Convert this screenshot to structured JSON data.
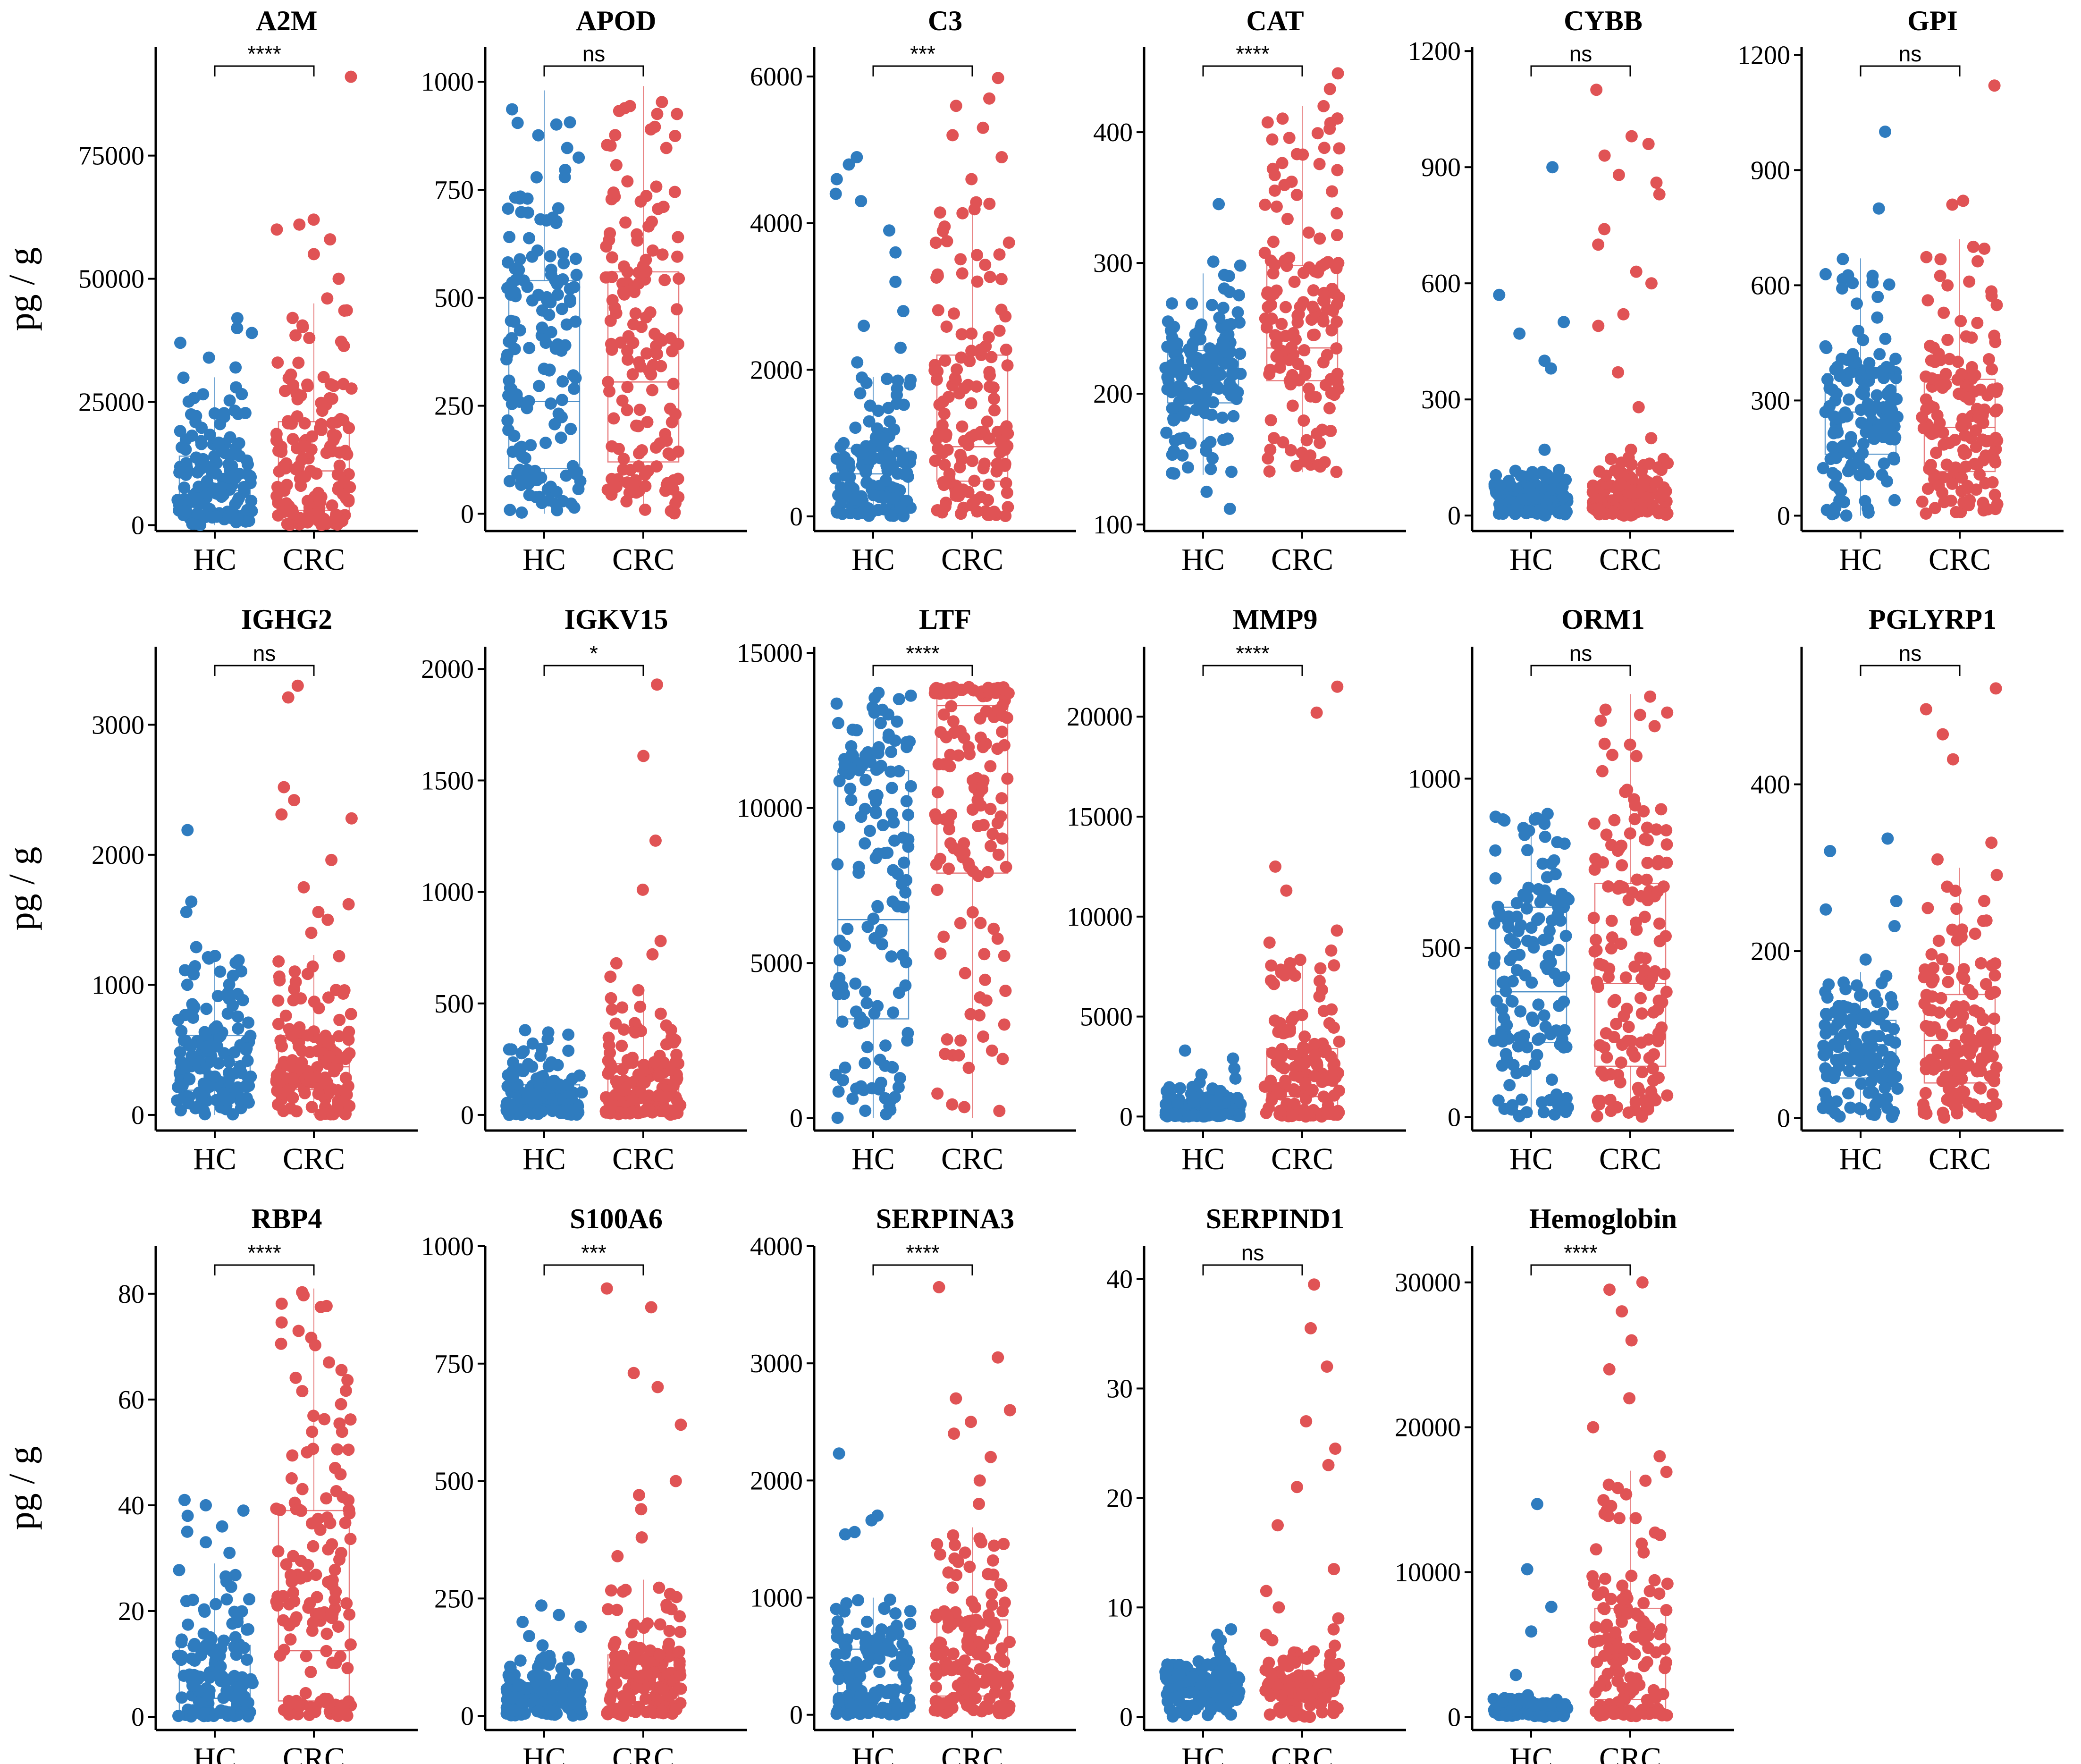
{
  "chart_data": {
    "type": "box-jitter",
    "ylabel": "pg / g",
    "groups": [
      "HC",
      "CRC"
    ],
    "colors": {
      "HC": "#2f7cbf",
      "CRC": "#e05355"
    },
    "panels": [
      {
        "title": "A2M",
        "ylim": [
          -1200,
          97000
        ],
        "ticks": [
          0,
          25000,
          50000,
          75000
        ],
        "tick_labels": [
          "0",
          "25000",
          "50000",
          "75000"
        ],
        "sig": "****",
        "HC": {
          "q1": 3000,
          "median": 7000,
          "q3": 14000,
          "whisker_low": 0,
          "whisker_high": 30000,
          "max": 42000,
          "outliers": [
            32000,
            34000,
            37000,
            39000,
            40000,
            42000
          ]
        },
        "CRC": {
          "q1": 3000,
          "median": 11000,
          "q3": 21000,
          "whisker_low": 0,
          "whisker_high": 45000,
          "max": 91000,
          "outliers": [
            46000,
            50000,
            55000,
            58000,
            60000,
            61000,
            62000,
            91000
          ]
        }
      },
      {
        "title": "APOD",
        "ylim": [
          -40,
          1080
        ],
        "ticks": [
          0,
          250,
          500,
          750,
          1000
        ],
        "tick_labels": [
          "0",
          "250",
          "500",
          "750",
          "1000"
        ],
        "sig": "ns",
        "HC": {
          "q1": 105,
          "median": 260,
          "q3": 540,
          "whisker_low": 0,
          "whisker_high": 980,
          "max": 980,
          "outliers": []
        },
        "CRC": {
          "q1": 120,
          "median": 305,
          "q3": 560,
          "whisker_low": 0,
          "whisker_high": 990,
          "max": 990,
          "outliers": []
        }
      },
      {
        "title": "C3",
        "ylim": [
          -200,
          6400
        ],
        "ticks": [
          0,
          2000,
          4000,
          6000
        ],
        "tick_labels": [
          "0",
          "2000",
          "4000",
          "6000"
        ],
        "sig": "***",
        "HC": {
          "q1": 250,
          "median": 580,
          "q3": 930,
          "whisker_low": 0,
          "whisker_high": 1900,
          "max": 4900,
          "outliers": [
            2100,
            2300,
            2600,
            2800,
            3200,
            3600,
            3900,
            4300,
            4400,
            4600,
            4800,
            4900
          ]
        },
        "CRC": {
          "q1": 480,
          "median": 950,
          "q3": 2200,
          "whisker_low": 0,
          "whisker_high": 4300,
          "max": 5980,
          "outliers": [
            4600,
            4900,
            5200,
            5300,
            5600,
            5700,
            5980
          ]
        }
      },
      {
        "title": "CAT",
        "ylim": [
          95,
          465
        ],
        "ticks": [
          100,
          200,
          300,
          400
        ],
        "tick_labels": [
          "100",
          "200",
          "300",
          "400"
        ],
        "sig": "****",
        "HC": {
          "q1": 193,
          "median": 215,
          "q3": 233,
          "whisker_low": 138,
          "whisker_high": 292,
          "max": 345,
          "outliers": [
            112,
            125,
            298,
            301,
            345
          ]
        },
        "CRC": {
          "q1": 210,
          "median": 235,
          "q3": 298,
          "whisker_low": 140,
          "whisker_high": 420,
          "max": 445,
          "outliers": [
            433,
            445
          ]
        }
      },
      {
        "title": "CYBB",
        "ylim": [
          -40,
          1210
        ],
        "ticks": [
          0,
          300,
          600,
          900,
          1200
        ],
        "tick_labels": [
          "0",
          "300",
          "600",
          "900",
          "1200"
        ],
        "sig": "ns",
        "HC": {
          "q1": 15,
          "median": 40,
          "q3": 70,
          "whisker_low": 0,
          "whisker_high": 120,
          "max": 900,
          "outliers": [
            170,
            380,
            400,
            470,
            500,
            570,
            900
          ]
        },
        "CRC": {
          "q1": 20,
          "median": 45,
          "q3": 80,
          "whisker_low": 0,
          "whisker_high": 150,
          "max": 1100,
          "outliers": [
            170,
            200,
            280,
            370,
            490,
            520,
            600,
            630,
            700,
            740,
            830,
            860,
            880,
            930,
            960,
            980,
            1100
          ]
        }
      },
      {
        "title": "GPI",
        "ylim": [
          -40,
          1220
        ],
        "ticks": [
          0,
          300,
          600,
          900,
          1200
        ],
        "tick_labels": [
          "0",
          "300",
          "600",
          "900",
          "1200"
        ],
        "sig": "ns",
        "HC": {
          "q1": 160,
          "median": 270,
          "q3": 370,
          "whisker_low": 0,
          "whisker_high": 670,
          "max": 1000,
          "outliers": [
            800,
            1000
          ]
        },
        "CRC": {
          "q1": 115,
          "median": 230,
          "q3": 355,
          "whisker_low": 0,
          "whisker_high": 720,
          "max": 1120,
          "outliers": [
            810,
            820,
            1120
          ]
        }
      },
      {
        "title": "IGHG2",
        "ylim": [
          -120,
          3600
        ],
        "ticks": [
          0,
          1000,
          2000,
          3000
        ],
        "tick_labels": [
          "0",
          "1000",
          "2000",
          "3000"
        ],
        "sig": "ns",
        "HC": {
          "q1": 190,
          "median": 410,
          "q3": 610,
          "whisker_low": 0,
          "whisker_high": 1240,
          "max": 2190,
          "outliers": [
            1290,
            1560,
            1640,
            2190
          ]
        },
        "CRC": {
          "q1": 195,
          "median": 370,
          "q3": 610,
          "whisker_low": 0,
          "whisker_high": 1230,
          "max": 3300,
          "outliers": [
            1400,
            1500,
            1560,
            1620,
            1750,
            1960,
            2280,
            2310,
            2420,
            2520,
            3210,
            3300
          ]
        }
      },
      {
        "title": "IGKV15",
        "ylim": [
          -70,
          2100
        ],
        "ticks": [
          0,
          500,
          1000,
          1500,
          2000
        ],
        "tick_labels": [
          "0",
          "500",
          "1000",
          "1500",
          "2000"
        ],
        "sig": "*",
        "HC": {
          "q1": 25,
          "median": 60,
          "q3": 135,
          "whisker_low": 0,
          "whisker_high": 300,
          "max": 380,
          "outliers": [
            320,
            340,
            360,
            370,
            380
          ]
        },
        "CRC": {
          "q1": 20,
          "median": 80,
          "q3": 230,
          "whisker_low": 0,
          "whisker_high": 560,
          "max": 1930,
          "outliers": [
            620,
            680,
            720,
            780,
            1010,
            1230,
            1610,
            1930
          ]
        }
      },
      {
        "title": "LTF",
        "ylim": [
          -400,
          15200
        ],
        "ticks": [
          0,
          5000,
          10000,
          15000
        ],
        "tick_labels": [
          "0",
          "5000",
          "10000",
          "15000"
        ],
        "sig": "****",
        "HC": {
          "q1": 3200,
          "median": 6400,
          "q3": 11200,
          "whisker_low": 0,
          "whisker_high": 13800,
          "max": 13800,
          "outliers": []
        },
        "CRC": {
          "q1": 7900,
          "median": 13300,
          "q3": 13700,
          "whisker_low": 0,
          "whisker_high": 13900,
          "max": 13900,
          "outliers": []
        }
      },
      {
        "title": "MMP9",
        "ylim": [
          -700,
          23500
        ],
        "ticks": [
          0,
          5000,
          10000,
          15000,
          20000
        ],
        "tick_labels": [
          "0",
          "5000",
          "10000",
          "15000",
          "20000"
        ],
        "sig": "****",
        "HC": {
          "q1": 100,
          "median": 300,
          "q3": 700,
          "whisker_low": 0,
          "whisker_high": 1500,
          "max": 3300,
          "outliers": [
            1700,
            1900,
            2100,
            2400,
            2900,
            3300
          ]
        },
        "CRC": {
          "q1": 300,
          "median": 1000,
          "q3": 3400,
          "whisker_low": 0,
          "whisker_high": 8000,
          "max": 21500,
          "outliers": [
            8300,
            8700,
            9300,
            11300,
            12500,
            20200,
            21500
          ]
        }
      },
      {
        "title": "ORM1",
        "ylim": [
          -40,
          1390
        ],
        "ticks": [
          0,
          500,
          1000
        ],
        "tick_labels": [
          "0",
          "500",
          "1000"
        ],
        "sig": "ns",
        "HC": {
          "q1": 220,
          "median": 370,
          "q3": 620,
          "whisker_low": 0,
          "whisker_high": 900,
          "max": 900,
          "outliers": []
        },
        "CRC": {
          "q1": 150,
          "median": 395,
          "q3": 690,
          "whisker_low": 0,
          "whisker_high": 1250,
          "max": 1250,
          "outliers": []
        }
      },
      {
        "title": "PGLYRP1",
        "ylim": [
          -15,
          565
        ],
        "ticks": [
          0,
          200,
          400
        ],
        "tick_labels": [
          "0",
          "200",
          "400"
        ],
        "sig": "ns",
        "HC": {
          "q1": 48,
          "median": 88,
          "q3": 117,
          "whisker_low": 0,
          "whisker_high": 175,
          "max": 335,
          "outliers": [
            190,
            230,
            250,
            260,
            320,
            335
          ]
        },
        "CRC": {
          "q1": 42,
          "median": 93,
          "q3": 148,
          "whisker_low": 0,
          "whisker_high": 300,
          "max": 515,
          "outliers": [
            310,
            330,
            430,
            460,
            490,
            515
          ]
        }
      },
      {
        "title": "RBP4",
        "ylim": [
          -2.5,
          89
        ],
        "ticks": [
          0,
          20,
          40,
          60,
          80
        ],
        "tick_labels": [
          "0",
          "20",
          "40",
          "60",
          "80"
        ],
        "sig": "****",
        "HC": {
          "q1": 1,
          "median": 3.5,
          "q3": 13.5,
          "whisker_low": 0,
          "whisker_high": 29,
          "max": 41,
          "outliers": [
            31,
            33,
            35,
            36,
            38,
            39,
            40,
            41
          ]
        },
        "CRC": {
          "q1": 3,
          "median": 12.5,
          "q3": 39,
          "whisker_low": 0,
          "whisker_high": 81,
          "max": 81,
          "outliers": []
        }
      },
      {
        "title": "S100A6",
        "ylim": [
          -30,
          1000
        ],
        "ticks": [
          0,
          250,
          500,
          750,
          1000
        ],
        "tick_labels": [
          "0",
          "250",
          "500",
          "750",
          "1000"
        ],
        "sig": "***",
        "HC": {
          "q1": 15,
          "median": 35,
          "q3": 65,
          "whisker_low": 0,
          "whisker_high": 130,
          "max": 235,
          "outliers": [
            150,
            170,
            190,
            200,
            215,
            235
          ]
        },
        "CRC": {
          "q1": 20,
          "median": 50,
          "q3": 130,
          "whisker_low": 0,
          "whisker_high": 290,
          "max": 910,
          "outliers": [
            340,
            380,
            440,
            470,
            500,
            620,
            700,
            730,
            870,
            910
          ]
        }
      },
      {
        "title": "SERPINA3",
        "ylim": [
          -130,
          4000
        ],
        "ticks": [
          0,
          1000,
          2000,
          3000,
          4000
        ],
        "tick_labels": [
          "0",
          "1000",
          "2000",
          "3000",
          "4000"
        ],
        "sig": "****",
        "HC": {
          "q1": 60,
          "median": 190,
          "q3": 560,
          "whisker_low": 0,
          "whisker_high": 1000,
          "max": 2230,
          "outliers": [
            1540,
            1560,
            1660,
            1700,
            2230
          ]
        },
        "CRC": {
          "q1": 160,
          "median": 470,
          "q3": 810,
          "whisker_low": 0,
          "whisker_high": 1600,
          "max": 3650,
          "outliers": [
            1800,
            2000,
            2200,
            2400,
            2500,
            2600,
            2700,
            3050,
            3650
          ]
        }
      },
      {
        "title": "SERPIND1",
        "ylim": [
          -1.2,
          43
        ],
        "ticks": [
          0,
          10,
          20,
          30,
          40
        ],
        "tick_labels": [
          "0",
          "10",
          "20",
          "30",
          "40"
        ],
        "sig": "ns",
        "HC": {
          "q1": 2,
          "median": 2.8,
          "q3": 3.6,
          "whisker_low": 0,
          "whisker_high": 5.2,
          "max": 8,
          "outliers": [
            5.8,
            6.3,
            7,
            7.5,
            8
          ]
        },
        "CRC": {
          "q1": 2.2,
          "median": 3,
          "q3": 3.8,
          "whisker_low": 0,
          "whisker_high": 6.2,
          "max": 39.5,
          "outliers": [
            6.5,
            7,
            7.5,
            8,
            9,
            10,
            11.5,
            13.5,
            17.5,
            21,
            23,
            24.5,
            27,
            32,
            35.5,
            39.5
          ]
        }
      },
      {
        "title": "Hemoglobin",
        "ylim": [
          -900,
          32500
        ],
        "ticks": [
          0,
          10000,
          20000,
          30000
        ],
        "tick_labels": [
          "0",
          "10000",
          "20000",
          "30000"
        ],
        "sig": "****",
        "HC": {
          "q1": 300,
          "median": 500,
          "q3": 800,
          "whisker_low": 0,
          "whisker_high": 1300,
          "max": 14700,
          "outliers": [
            1500,
            2900,
            5900,
            7600,
            10200,
            14700
          ]
        },
        "CRC": {
          "q1": 500,
          "median": 1200,
          "q3": 7500,
          "whisker_low": 0,
          "whisker_high": 17000,
          "max": 30000,
          "outliers": [
            18000,
            20000,
            22000,
            24000,
            26000,
            28000,
            29500,
            30000
          ]
        }
      }
    ]
  }
}
